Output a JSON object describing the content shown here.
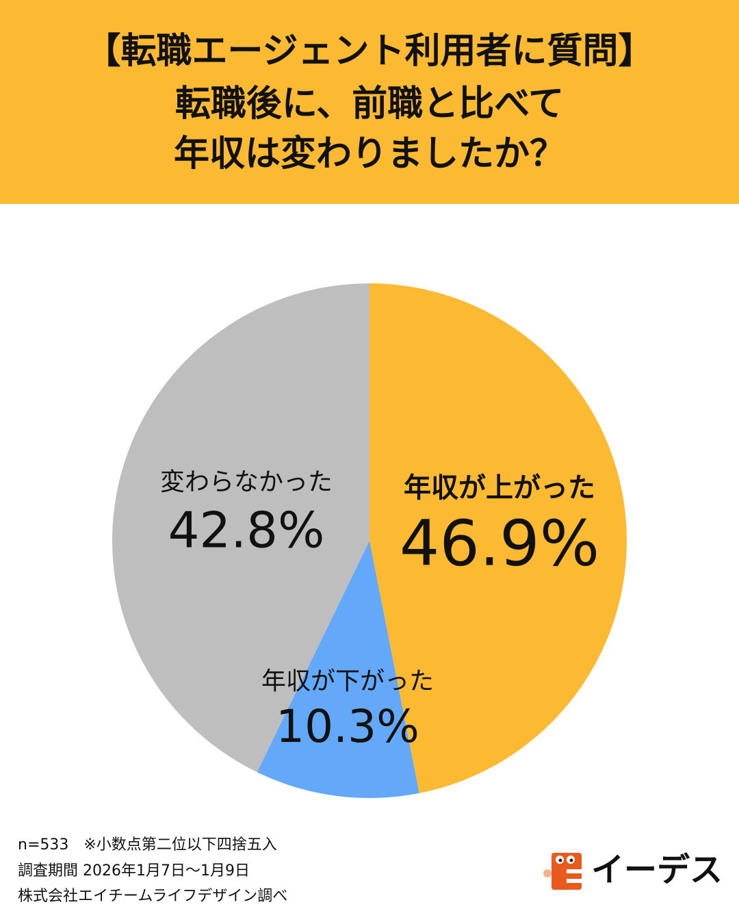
{
  "chart_data": {
    "type": "pie",
    "title": [
      "【転職エージェント利用者に質問】",
      "転職後に、前職と比べて",
      "年収は変わりましたか？"
    ],
    "categories": [
      "年収が上がった",
      "年収が下がった",
      "変わらなかった"
    ],
    "values": [
      46.9,
      10.3,
      42.8
    ],
    "value_labels": [
      "46.9%",
      "10.3%",
      "42.8%"
    ],
    "colors": [
      "#fbba31",
      "#64a8f9",
      "#bebebe"
    ],
    "notes": [
      "n=533　※小数点第二位以下四捨五入",
      "調査期間 2026年1月7日～1月9日",
      "株式会社エイチームライフデザイン調べ"
    ],
    "logo_text": "イーデス"
  }
}
